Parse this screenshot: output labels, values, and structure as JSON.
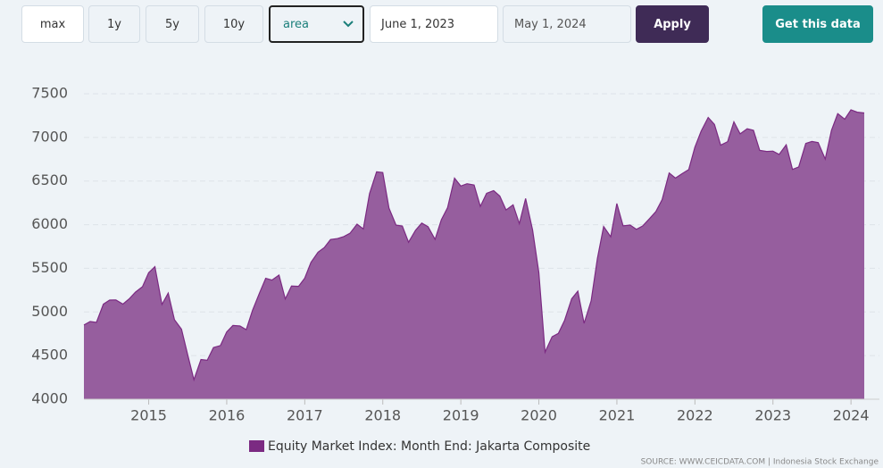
{
  "controls": {
    "ranges": [
      "max",
      "1y",
      "5y",
      "10y"
    ],
    "chart_type": "area",
    "start_date": "June 1, 2023",
    "end_date": "May 1, 2024",
    "apply": "Apply",
    "get_data": "Get this data"
  },
  "chart_data": {
    "type": "area",
    "x": [
      2014.17,
      2014.25,
      2014.33,
      2014.42,
      2014.5,
      2014.58,
      2014.67,
      2014.75,
      2014.83,
      2014.92,
      2015,
      2015.08,
      2015.17,
      2015.25,
      2015.33,
      2015.42,
      2015.5,
      2015.58,
      2015.67,
      2015.75,
      2015.83,
      2015.92,
      2016,
      2016.08,
      2016.17,
      2016.25,
      2016.33,
      2016.42,
      2016.5,
      2016.58,
      2016.67,
      2016.75,
      2016.83,
      2016.92,
      2017,
      2017.08,
      2017.17,
      2017.25,
      2017.33,
      2017.42,
      2017.5,
      2017.58,
      2017.67,
      2017.75,
      2017.83,
      2017.92,
      2018,
      2018.08,
      2018.17,
      2018.25,
      2018.33,
      2018.42,
      2018.5,
      2018.58,
      2018.67,
      2018.75,
      2018.83,
      2018.92,
      2019,
      2019.08,
      2019.17,
      2019.25,
      2019.33,
      2019.42,
      2019.5,
      2019.58,
      2019.67,
      2019.75,
      2019.83,
      2019.92,
      2020,
      2020.08,
      2020.17,
      2020.25,
      2020.33,
      2020.42,
      2020.5,
      2020.58,
      2020.67,
      2020.75,
      2020.83,
      2020.92,
      2021,
      2021.08,
      2021.17,
      2021.25,
      2021.33,
      2021.42,
      2021.5,
      2021.58,
      2021.67,
      2021.75,
      2021.83,
      2021.92,
      2022,
      2022.08,
      2022.17,
      2022.25,
      2022.33,
      2022.42,
      2022.5,
      2022.58,
      2022.67,
      2022.75,
      2022.83,
      2022.92,
      2023,
      2023.08,
      2023.17,
      2023.25,
      2023.33,
      2023.42,
      2023.5,
      2023.58,
      2023.67,
      2023.75,
      2023.83,
      2023.92,
      2024,
      2024.08,
      2024.17
    ],
    "series": [
      {
        "name": "Equity Market Index: Month End: Jakarta Composite",
        "color": "#7b2a82",
        "fill": "#965e9e",
        "values": [
          4850,
          4890,
          4880,
          5090,
          5136,
          5138,
          5090,
          5150,
          5227,
          5289,
          5450,
          5519,
          5086,
          5216,
          4911,
          4802,
          4510,
          4224,
          4455,
          4446,
          4593,
          4615,
          4771,
          4845,
          4839,
          4797,
          5017,
          5216,
          5386,
          5365,
          5423,
          5149,
          5297,
          5294,
          5387,
          5568,
          5685,
          5738,
          5830,
          5841,
          5864,
          5901,
          6006,
          5952,
          6356,
          6606,
          6597,
          6189,
          5995,
          5984,
          5799,
          5936,
          6018,
          5977,
          5832,
          6056,
          6195,
          6533,
          6443,
          6469,
          6455,
          6209,
          6359,
          6391,
          6328,
          6169,
          6228,
          6012,
          6300,
          5940,
          5453,
          4539,
          4716,
          4754,
          4905,
          5150,
          5238,
          4870,
          5128,
          5612,
          5979,
          5862,
          6242,
          5986,
          5996,
          5947,
          5985,
          6070,
          6150,
          6287,
          6592,
          6534,
          6581,
          6631,
          6888,
          7071,
          7229,
          7149,
          6912,
          6951,
          7179,
          7041,
          7099,
          7081,
          6851,
          6839,
          6843,
          6805,
          6916,
          6633,
          6662,
          6931,
          6953,
          6940,
          6752,
          7081,
          7273,
          7208,
          7316,
          7289,
          7280
        ]
      }
    ],
    "xlim": [
      2014.17,
      2024.17
    ],
    "xticks": [
      2015,
      2016,
      2017,
      2018,
      2019,
      2020,
      2021,
      2022,
      2023,
      2024
    ],
    "ylim": [
      4000,
      7500
    ],
    "yticks": [
      4000,
      4500,
      5000,
      5500,
      6000,
      6500,
      7000,
      7500
    ],
    "grid": true,
    "source": "SOURCE: WWW.CEICDATA.COM | Indonesia Stock Exchange"
  }
}
